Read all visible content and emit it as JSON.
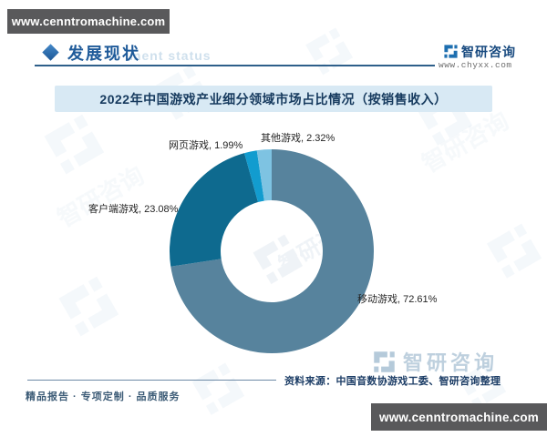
{
  "page": {
    "top_banner_url": "www.cenntromachine.com",
    "bottom_banner_url": "www.cenntromachine.com"
  },
  "header": {
    "section_title": "发展现状",
    "ghost_text": "ment status",
    "brand_name": "智研咨询",
    "brand_site": "www.chyxx.com"
  },
  "chart_title": "2022年中国游戏产业细分领域市场占比情况（按销售收入）",
  "chart_data": {
    "type": "pie",
    "donut": true,
    "inner_radius_ratio": 0.5,
    "start_angle_deg": 0,
    "direction": "clockwise",
    "legend_position": "none",
    "title": "2022年中国游戏产业细分领域市场占比情况（按销售收入）",
    "slices": [
      {
        "label": "移动游戏",
        "value": 72.61,
        "color": "#57839D",
        "data_label": "移动游戏, 72.61%"
      },
      {
        "label": "客户端游戏",
        "value": 23.08,
        "color": "#0E6A8F",
        "data_label": "客户端游戏, 23.08%"
      },
      {
        "label": "网页游戏",
        "value": 1.99,
        "color": "#129CCF",
        "data_label": "网页游戏, 1.99%"
      },
      {
        "label": "其他游戏",
        "value": 2.32,
        "color": "#7EC3E2",
        "data_label": "其他游戏, 2.32%"
      }
    ]
  },
  "footer": {
    "source": "资料来源：中国音数协游戏工委、智研咨询整理",
    "tagline": "精品报告 · 专项定制 · 品质服务"
  },
  "watermark": {
    "brand": "智研咨询"
  }
}
